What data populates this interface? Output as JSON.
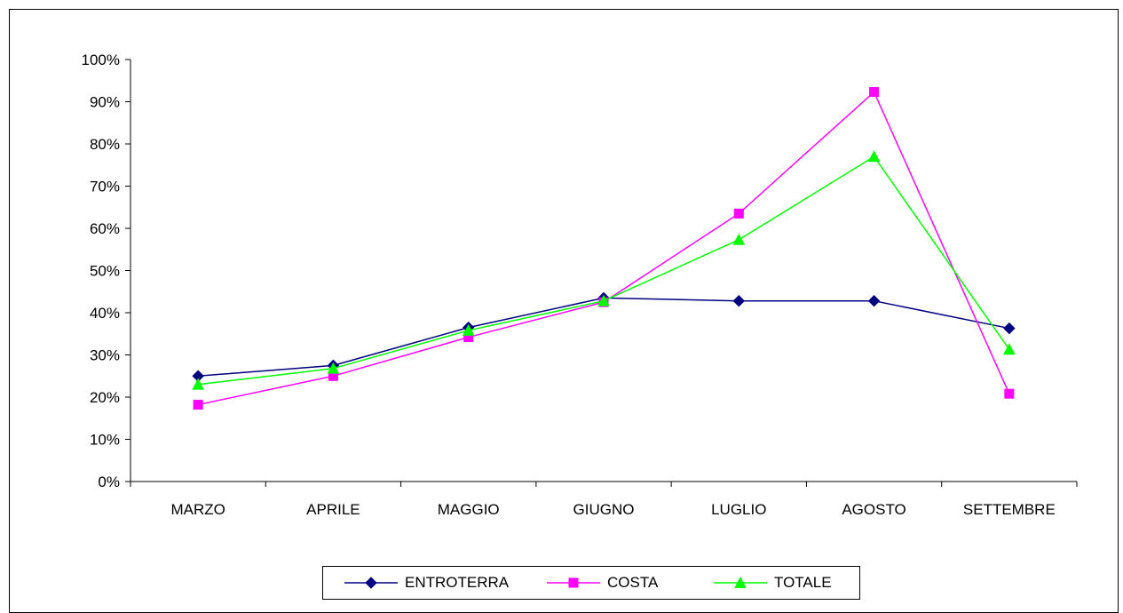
{
  "chart_data": {
    "type": "line",
    "categories": [
      "MARZO",
      "APRILE",
      "MAGGIO",
      "GIUGNO",
      "LUGLIO",
      "AGOSTO",
      "SETTEMBRE"
    ],
    "ylim": [
      0,
      100
    ],
    "y_ticks": [
      "0%",
      "10%",
      "20%",
      "30%",
      "40%",
      "50%",
      "60%",
      "70%",
      "80%",
      "90%",
      "100%"
    ],
    "y_unit": "%",
    "grid": false,
    "legend_position": "bottom",
    "series": [
      {
        "name": "ENTROTERRA",
        "color": "#000080",
        "marker": "diamond",
        "values": [
          25,
          27.5,
          36.5,
          43.5,
          42.8,
          42.8,
          36.3
        ]
      },
      {
        "name": "COSTA",
        "color": "#FF00FF",
        "marker": "square",
        "values": [
          18.2,
          25,
          34.2,
          42.5,
          63.5,
          92.3,
          20.8
        ]
      },
      {
        "name": "TOTALE",
        "color": "#00FF00",
        "marker": "triangle",
        "values": [
          23,
          26.8,
          35.8,
          42.8,
          57.3,
          77,
          31.3
        ]
      }
    ]
  }
}
